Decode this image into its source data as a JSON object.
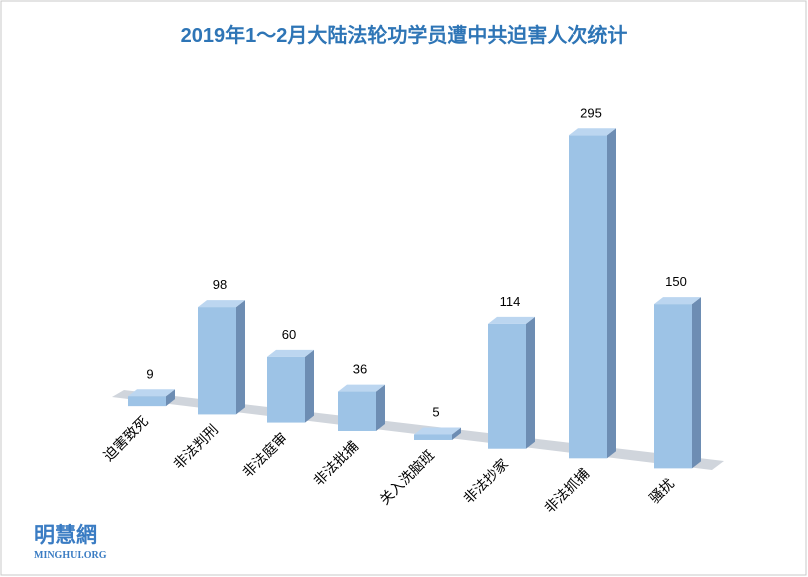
{
  "chart_data": {
    "type": "bar3d",
    "title": "2019年1～2月大陆法轮功学员遭中共迫害人次统计",
    "categories": [
      "迫害致死",
      "非法判刑",
      "非法庭审",
      "非法批捕",
      "关入洗脑班",
      "非法抄家",
      "非法抓捕",
      "骚扰"
    ],
    "values": [
      9,
      98,
      60,
      36,
      5,
      114,
      295,
      150
    ],
    "color": "#9dc3e6",
    "logo_text": "明慧網",
    "logo_url": "MINGHUI.ORG"
  }
}
